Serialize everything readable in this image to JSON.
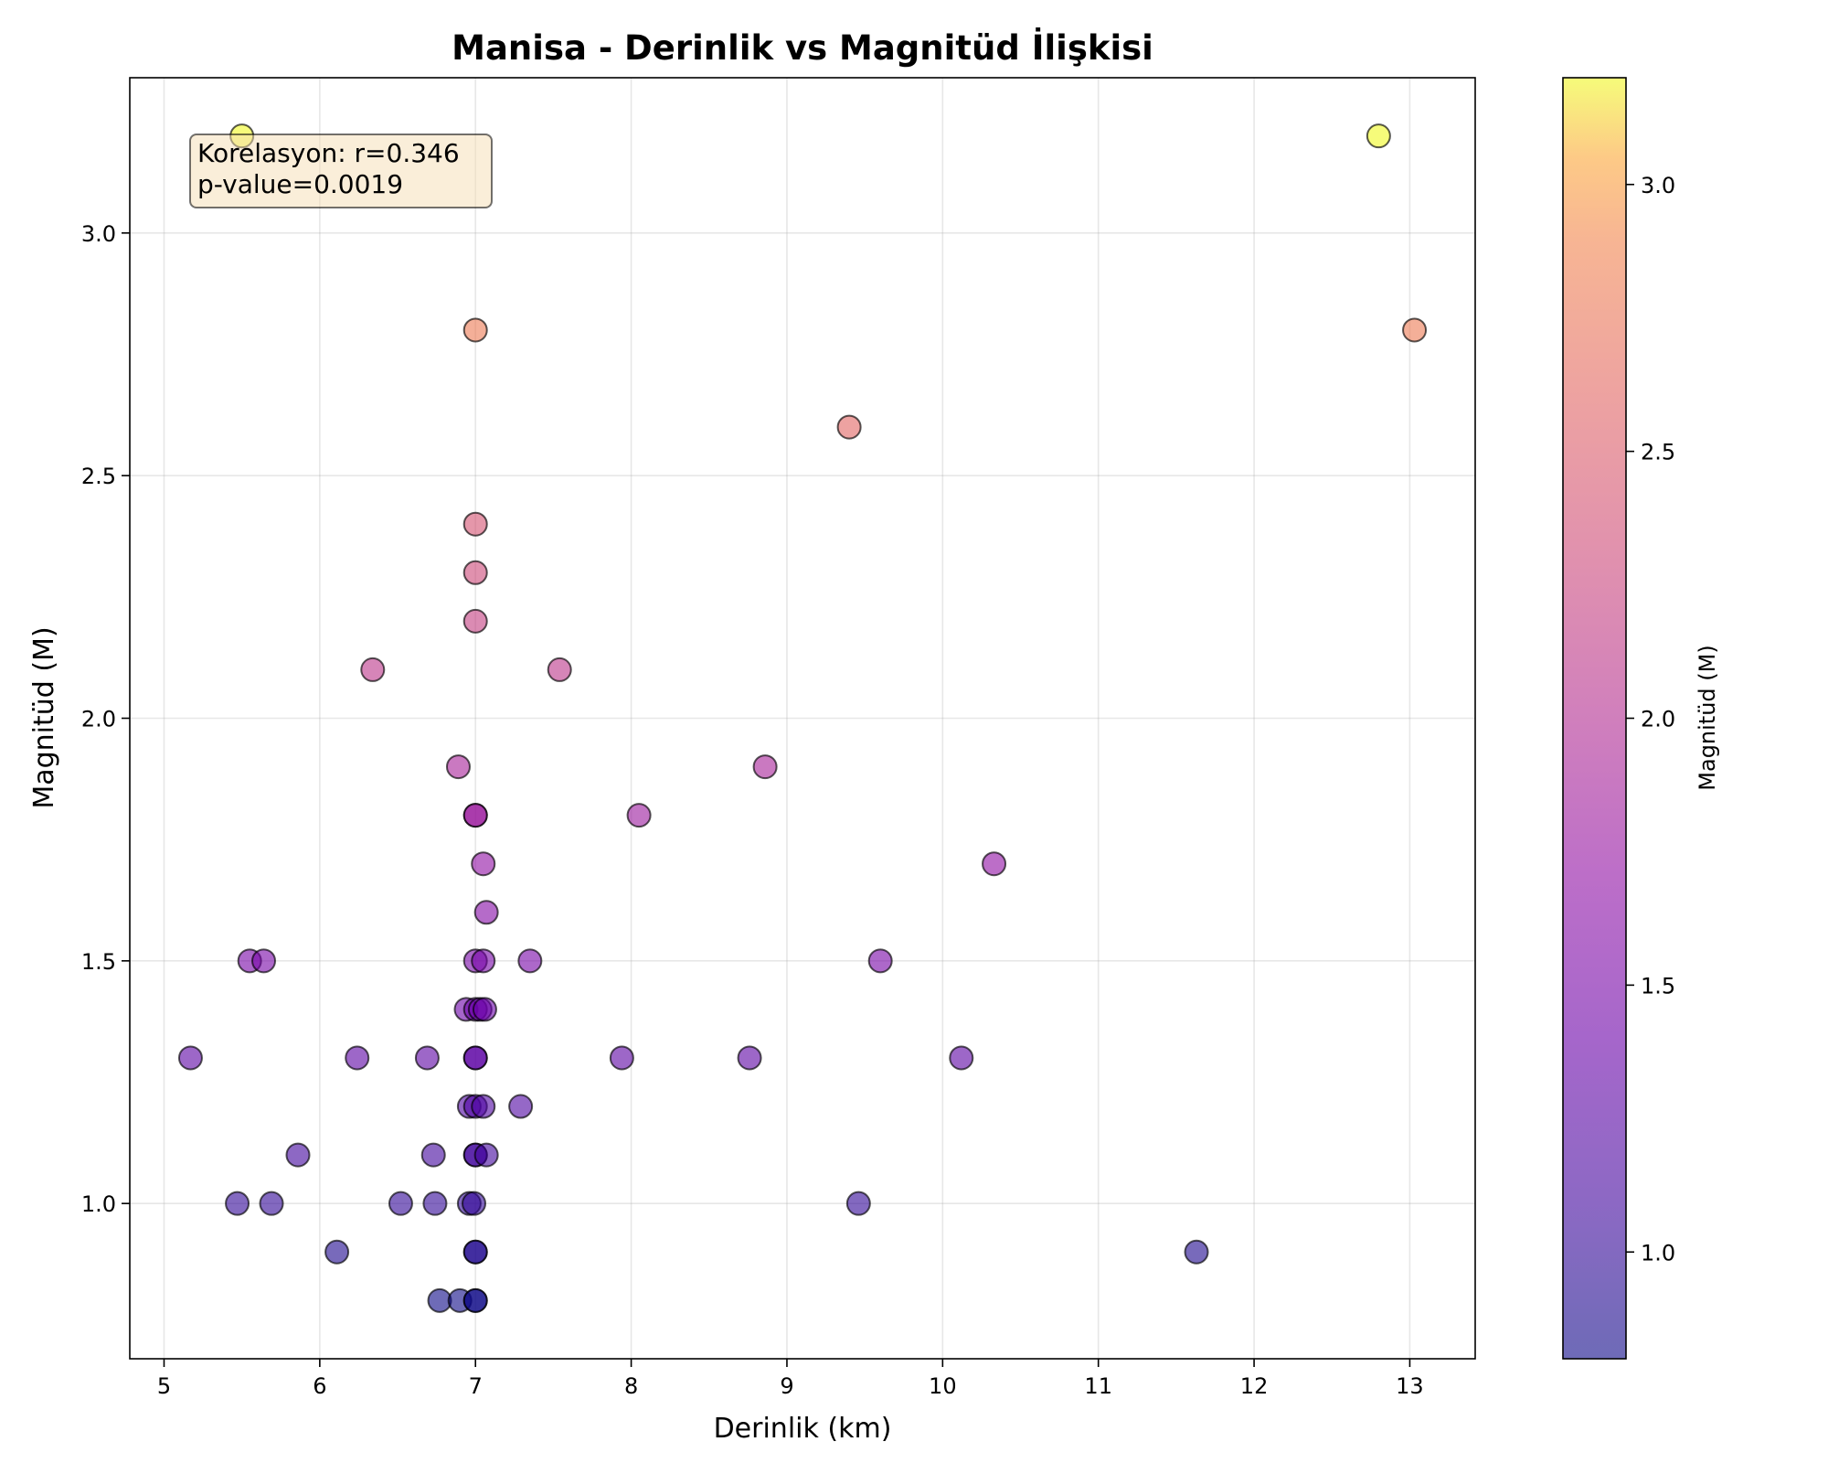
{
  "chart_data": {
    "type": "scatter",
    "title": "Manisa - Derinlik vs Magnitüd İlişkisi",
    "xlabel": "Derinlik (km)",
    "ylabel": "Magnitüd (M)",
    "xlim": [
      4.78,
      13.42
    ],
    "ylim": [
      0.68,
      3.32
    ],
    "xticks": [
      5,
      6,
      7,
      8,
      9,
      10,
      11,
      12,
      13
    ],
    "yticks": [
      1.0,
      1.5,
      2.0,
      2.5,
      3.0
    ],
    "grid": true,
    "annotation": {
      "line1": "Korelasyon: r=0.346",
      "line2": "p-value=0.0019",
      "placement": "top-left"
    },
    "colorbar": {
      "label": "Magnitüd (M)",
      "colormap": "plasma",
      "range": [
        0.8,
        3.2
      ],
      "ticks": [
        1.0,
        1.5,
        2.0,
        2.5,
        3.0
      ]
    },
    "points": [
      {
        "x": 5.5,
        "y": 3.2
      },
      {
        "x": 12.8,
        "y": 3.2
      },
      {
        "x": 7.0,
        "y": 2.8
      },
      {
        "x": 13.03,
        "y": 2.8
      },
      {
        "x": 9.4,
        "y": 2.6
      },
      {
        "x": 7.0,
        "y": 2.4
      },
      {
        "x": 7.0,
        "y": 2.3
      },
      {
        "x": 7.0,
        "y": 2.2
      },
      {
        "x": 6.34,
        "y": 2.1
      },
      {
        "x": 7.54,
        "y": 2.1
      },
      {
        "x": 6.89,
        "y": 1.9
      },
      {
        "x": 8.86,
        "y": 1.9
      },
      {
        "x": 7.0,
        "y": 1.8
      },
      {
        "x": 7.0,
        "y": 1.8
      },
      {
        "x": 8.05,
        "y": 1.8
      },
      {
        "x": 7.05,
        "y": 1.7
      },
      {
        "x": 10.33,
        "y": 1.7
      },
      {
        "x": 7.07,
        "y": 1.6
      },
      {
        "x": 5.55,
        "y": 1.5
      },
      {
        "x": 5.64,
        "y": 1.5
      },
      {
        "x": 7.0,
        "y": 1.5
      },
      {
        "x": 7.05,
        "y": 1.5
      },
      {
        "x": 7.35,
        "y": 1.5
      },
      {
        "x": 9.6,
        "y": 1.5
      },
      {
        "x": 6.94,
        "y": 1.4
      },
      {
        "x": 7.0,
        "y": 1.4
      },
      {
        "x": 7.03,
        "y": 1.4
      },
      {
        "x": 7.06,
        "y": 1.4
      },
      {
        "x": 5.17,
        "y": 1.3
      },
      {
        "x": 6.24,
        "y": 1.3
      },
      {
        "x": 6.69,
        "y": 1.3
      },
      {
        "x": 7.0,
        "y": 1.3
      },
      {
        "x": 7.0,
        "y": 1.3
      },
      {
        "x": 7.94,
        "y": 1.3
      },
      {
        "x": 8.76,
        "y": 1.3
      },
      {
        "x": 10.12,
        "y": 1.3
      },
      {
        "x": 6.96,
        "y": 1.2
      },
      {
        "x": 7.0,
        "y": 1.2
      },
      {
        "x": 7.05,
        "y": 1.2
      },
      {
        "x": 7.29,
        "y": 1.2
      },
      {
        "x": 5.86,
        "y": 1.1
      },
      {
        "x": 6.73,
        "y": 1.1
      },
      {
        "x": 7.0,
        "y": 1.1
      },
      {
        "x": 7.0,
        "y": 1.1
      },
      {
        "x": 7.07,
        "y": 1.1
      },
      {
        "x": 5.47,
        "y": 1.0
      },
      {
        "x": 5.69,
        "y": 1.0
      },
      {
        "x": 6.52,
        "y": 1.0
      },
      {
        "x": 6.74,
        "y": 1.0
      },
      {
        "x": 6.96,
        "y": 1.0
      },
      {
        "x": 6.99,
        "y": 1.0
      },
      {
        "x": 9.46,
        "y": 1.0
      },
      {
        "x": 6.11,
        "y": 0.9
      },
      {
        "x": 7.0,
        "y": 0.9
      },
      {
        "x": 7.0,
        "y": 0.9
      },
      {
        "x": 11.63,
        "y": 0.9
      },
      {
        "x": 6.77,
        "y": 0.8
      },
      {
        "x": 6.9,
        "y": 0.8
      },
      {
        "x": 7.0,
        "y": 0.8
      },
      {
        "x": 7.0,
        "y": 0.8
      }
    ]
  }
}
